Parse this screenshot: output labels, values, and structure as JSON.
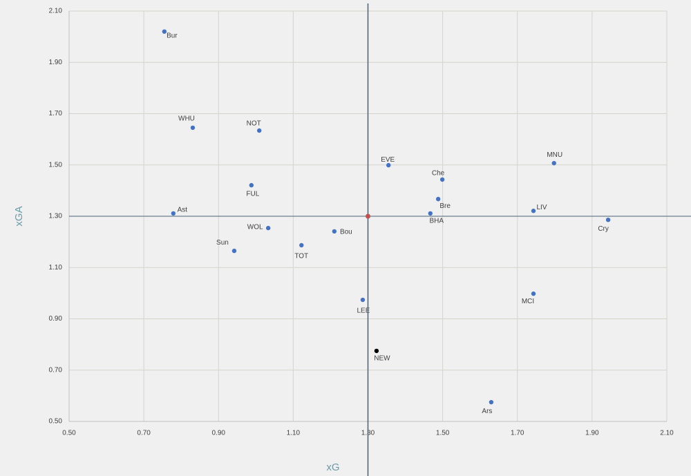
{
  "chart_data": {
    "type": "scatter",
    "xlabel": "xG",
    "ylabel": "xGA",
    "xlim": [
      0.5,
      2.1
    ],
    "ylim": [
      0.5,
      2.1
    ],
    "xticks": [
      {
        "value": 0.5,
        "label": "0.50"
      },
      {
        "value": 0.7,
        "label": "0.70"
      },
      {
        "value": 0.9,
        "label": "0.90"
      },
      {
        "value": 1.1,
        "label": "1.10"
      },
      {
        "value": 1.3,
        "label": "1.30"
      },
      {
        "value": 1.5,
        "label": "1.50"
      },
      {
        "value": 1.7,
        "label": "1.70"
      },
      {
        "value": 1.9,
        "label": "1.90"
      },
      {
        "value": 2.1,
        "label": "2.10"
      }
    ],
    "yticks": [
      {
        "value": 0.5,
        "label": "0.50"
      },
      {
        "value": 0.7,
        "label": "0.70"
      },
      {
        "value": 0.9,
        "label": "0.90"
      },
      {
        "value": 1.1,
        "label": "1.10"
      },
      {
        "value": 1.3,
        "label": "1.30"
      },
      {
        "value": 1.5,
        "label": "1.50"
      },
      {
        "value": 1.7,
        "label": "1.70"
      },
      {
        "value": 1.9,
        "label": "1.90"
      },
      {
        "value": 2.1,
        "label": "2.10"
      }
    ],
    "grid": true,
    "series": [
      {
        "color": "#4472c4",
        "labels": [
          "Bur",
          "WHU",
          "NOT",
          "FUL",
          "Ast",
          "WOL",
          "Sun",
          "TOT",
          "Bou",
          "LEE",
          "EVE",
          "Che",
          "Bre",
          "BHA",
          "MNU",
          "LIV",
          "Cry",
          "MCI",
          "Ars"
        ],
        "x": [
          0.755,
          0.831,
          1.009,
          0.988,
          0.779,
          1.033,
          0.942,
          1.122,
          1.21,
          1.286,
          1.355,
          1.499,
          1.488,
          1.467,
          1.798,
          1.743,
          1.943,
          1.743,
          1.63
        ],
        "values": [
          2.02,
          1.645,
          1.634,
          1.421,
          1.311,
          1.254,
          1.165,
          1.187,
          1.241,
          0.974,
          1.499,
          1.443,
          1.367,
          1.311,
          1.507,
          1.321,
          1.286,
          0.998,
          0.575
        ]
      },
      {
        "color": "#000000",
        "labels": [
          "NEW"
        ],
        "x": [
          1.323
        ],
        "values": [
          0.775
        ]
      }
    ],
    "reference": {
      "x": 1.3,
      "y": 1.3,
      "color": "#c0504d",
      "line_color": "#4a6076"
    }
  }
}
